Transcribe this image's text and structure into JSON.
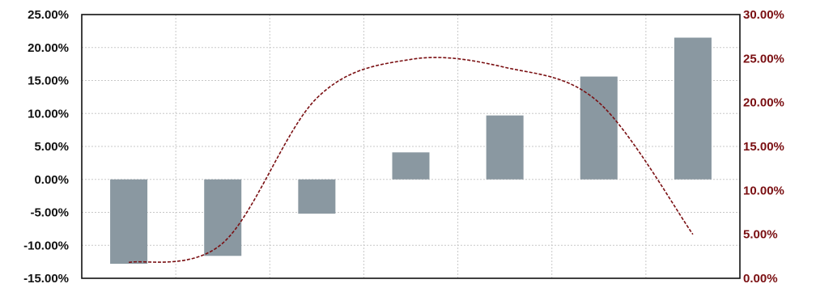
{
  "chart_data": {
    "type": "bar",
    "title": "",
    "xlabel": "",
    "ylabel": "",
    "categories": [
      "",
      "",
      "",
      "",
      "",
      "",
      ""
    ],
    "series": [
      {
        "axis": "left",
        "type": "bar",
        "color": "#8a98a1",
        "values": [
          -12.8,
          -11.6,
          -5.2,
          4.1,
          9.7,
          15.6,
          21.5
        ]
      },
      {
        "axis": "right",
        "type": "line",
        "style": "dashed smooth",
        "color": "#7a0f12",
        "values": [
          1.8,
          4.0,
          20.5,
          24.9,
          24.0,
          20.0,
          5.0
        ]
      }
    ],
    "ylim": [
      -15,
      25
    ],
    "y2lim": [
      0,
      30
    ],
    "yticks": [
      "-15.00%",
      "-10.00%",
      "-5.00%",
      "0.00%",
      "5.00%",
      "10.00%",
      "15.00%",
      "20.00%",
      "25.00%"
    ],
    "y2ticks": [
      "0.00%",
      "5.00%",
      "10.00%",
      "15.00%",
      "20.00%",
      "25.00%",
      "30.00%"
    ],
    "grid": true,
    "legend": "none"
  }
}
